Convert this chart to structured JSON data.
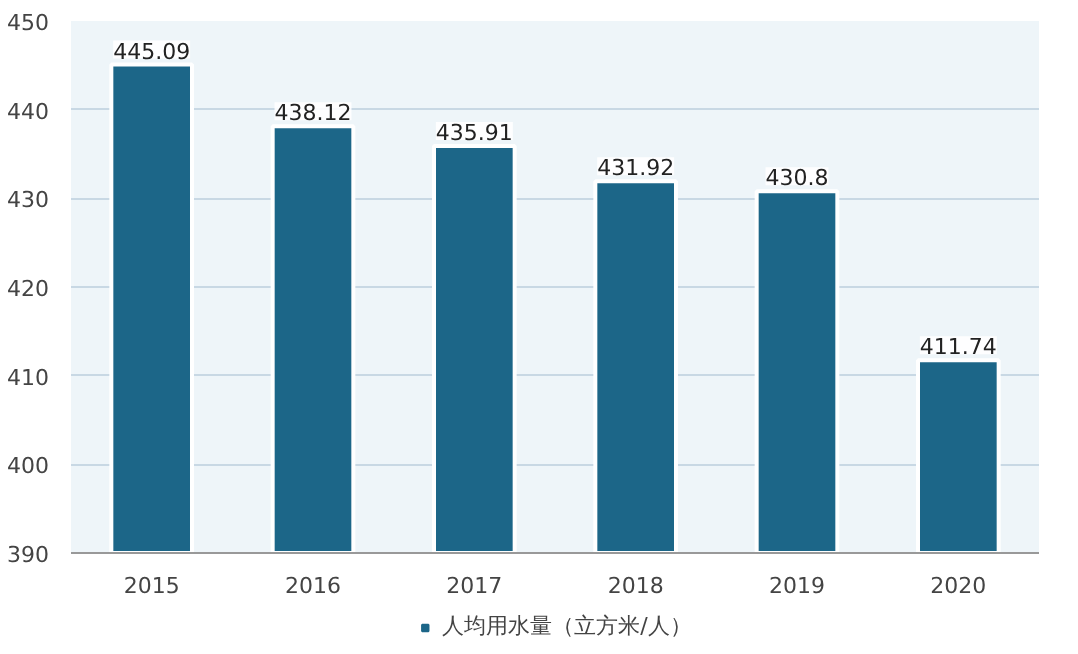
{
  "chart_data": {
    "type": "bar",
    "categories": [
      "2015",
      "2016",
      "2017",
      "2018",
      "2019",
      "2020"
    ],
    "series": [
      {
        "name": "人均用水量（立方米/人）",
        "color": "#1c6688",
        "values": [
          445.09,
          438.12,
          435.91,
          431.92,
          430.8,
          411.74
        ]
      }
    ],
    "ylim": [
      390,
      450
    ],
    "yticks": [
      390,
      400,
      410,
      420,
      430,
      440,
      450
    ],
    "grid": "y",
    "legend": "bottom",
    "data_labels": true
  }
}
